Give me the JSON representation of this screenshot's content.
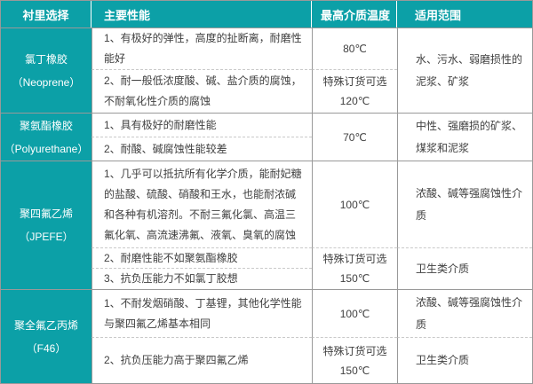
{
  "colors": {
    "accent": "#0ca0a7",
    "border": "#999999",
    "dashed_divider": "#c9c9c9",
    "body_text": "#404040",
    "header_text": "#ffffff"
  },
  "table": {
    "header": {
      "lining": "衬里选择",
      "performance": "主要性能",
      "temperature": "最高介质温度",
      "range": "适用范围"
    },
    "rows": [
      {
        "name_cn": "氯丁橡胶",
        "name_en": "（Neoprene）",
        "performance": [
          "1、有极好的弹性，高度的扯断离，耐磨性能好",
          "2、耐一般低浓度酸、碱、盐介质的腐蚀，不耐氧化性介质的腐蚀"
        ],
        "temperature": [
          {
            "main": "80℃"
          },
          {
            "note": "特殊订货可选",
            "main": "120℃"
          }
        ],
        "range": [
          "水、污水、弱磨损性的泥浆、矿浆"
        ]
      },
      {
        "name_cn": "聚氨酯橡胶",
        "name_en": "（Polyurethane）",
        "performance": [
          "1、具有极好的耐磨性能",
          "2、耐酸、碱腐蚀性能较差"
        ],
        "temperature": [
          {
            "main": "70℃"
          }
        ],
        "range": [
          "中性、强磨损的矿浆、煤浆和泥浆"
        ]
      },
      {
        "name_cn": "聚四氟乙烯",
        "name_en": "（JPEFE）",
        "performance": [
          "1、几乎可以抵抗所有化学介质，能耐妃糖的盐酸、硫酸、硝酸和王水，也能耐浓碱和各种有机溶剂。不耐三氟化氯、高温三氟化氧、高流速沸氟、液氧、臭氧的腐蚀",
          "2、耐磨性能不如聚氨酯橡胶",
          "3、抗负压能力不如氯丁胶想"
        ],
        "temperature": [
          {
            "main": "100℃"
          },
          {
            "note": "特殊订货可选",
            "main": "150℃"
          }
        ],
        "range": [
          "浓酸、碱等强腐蚀性介质",
          "卫生类介质"
        ]
      },
      {
        "name_cn": "聚全氟乙丙烯",
        "name_en": "（F46）",
        "performance": [
          "1、不耐发烟硝酸、丁基锂，其他化学性能与聚四氟乙烯基本相同",
          "2、抗负压能力高于聚四氟乙烯"
        ],
        "temperature": [
          {
            "main": "100℃"
          },
          {
            "note": "特殊订货可选",
            "main": "150℃"
          }
        ],
        "range": [
          "浓酸、碱等强腐蚀性介质",
          "卫生类介质"
        ]
      }
    ]
  }
}
